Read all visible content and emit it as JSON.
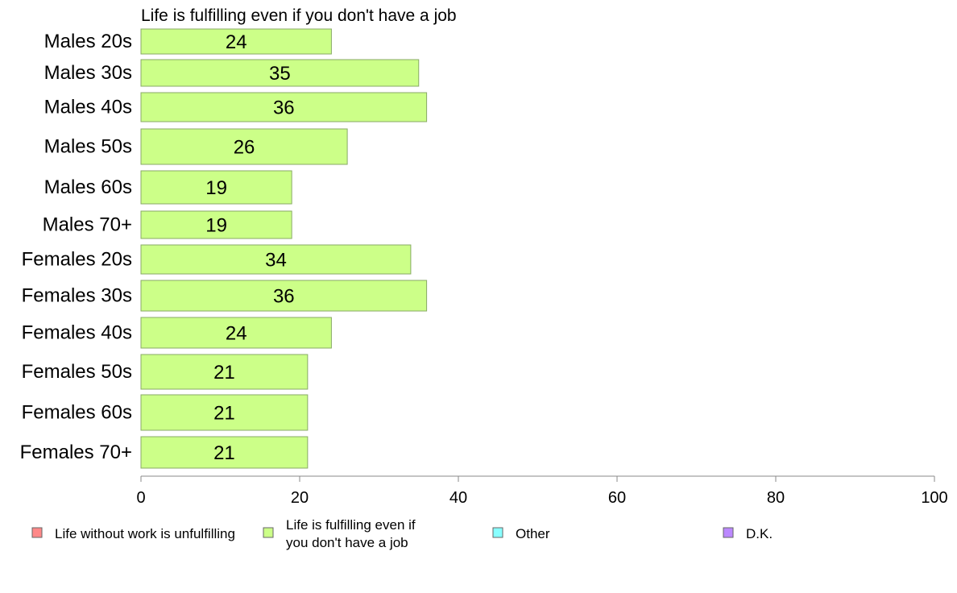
{
  "chart_data": {
    "type": "bar",
    "orientation": "horizontal",
    "title": "Life is fulfilling even if you don't have a job",
    "categories": [
      "Males 20s",
      "Males 30s",
      "Males 40s",
      "Males 50s",
      "Males 60s",
      "Males 70+",
      "Females 20s",
      "Females 30s",
      "Females 40s",
      "Females 50s",
      "Females 60s",
      "Females 70+"
    ],
    "values": [
      24,
      35,
      36,
      26,
      19,
      19,
      34,
      36,
      24,
      21,
      21,
      21
    ],
    "value_labels": [
      "24",
      "35",
      "36",
      "26",
      "19",
      "19",
      "34",
      "36",
      "24",
      "21",
      "21",
      "21"
    ],
    "xlim": [
      0,
      100
    ],
    "xticks": [
      0,
      20,
      40,
      60,
      80,
      100
    ],
    "xtick_labels": [
      "0",
      "20",
      "40",
      "60",
      "80",
      "100"
    ],
    "bar_color": "#ccff88",
    "bar_edge_color": "#88aa66",
    "grid": false,
    "legend": {
      "placement": "bottom",
      "items": [
        {
          "lines": [
            "Life without work is unfulfilling"
          ],
          "color": "#ff8888"
        },
        {
          "lines": [
            "Life is fulfilling even if",
            "you don't have a job"
          ],
          "color": "#ccff88"
        },
        {
          "lines": [
            "Other"
          ],
          "color": "#88ffff"
        },
        {
          "lines": [
            "D.K."
          ],
          "color": "#bb88ff"
        }
      ]
    }
  }
}
